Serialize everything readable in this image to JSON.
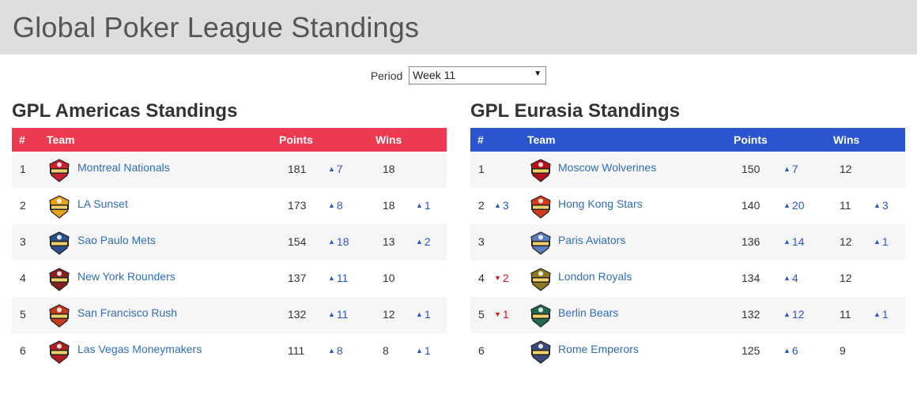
{
  "header": {
    "title": "Global Poker League Standings"
  },
  "period": {
    "label": "Period",
    "selected": "Week 11"
  },
  "columns": {
    "rank": "#",
    "team": "Team",
    "points": "Points",
    "wins": "Wins"
  },
  "colors": {
    "americas_header": "#ee3a50",
    "eurasia_header": "#2b55cf",
    "link": "#2f6db5",
    "up": "#2b55cf",
    "down": "#d9141e"
  },
  "americas": {
    "title": "GPL Americas Standings",
    "rows": [
      {
        "rank": "1",
        "rank_change": "",
        "team": "Montreal Nationals",
        "logo": "montreal-nationals-logo",
        "points": "181",
        "points_change": "7",
        "wins": "18",
        "wins_change": ""
      },
      {
        "rank": "2",
        "rank_change": "",
        "team": "LA Sunset",
        "logo": "la-sunset-logo",
        "points": "173",
        "points_change": "8",
        "wins": "18",
        "wins_change": "1"
      },
      {
        "rank": "3",
        "rank_change": "",
        "team": "Sao Paulo Mets",
        "logo": "sao-paulo-mets-logo",
        "points": "154",
        "points_change": "18",
        "wins": "13",
        "wins_change": "2"
      },
      {
        "rank": "4",
        "rank_change": "",
        "team": "New York Rounders",
        "logo": "new-york-rounders-logo",
        "points": "137",
        "points_change": "11",
        "wins": "10",
        "wins_change": ""
      },
      {
        "rank": "5",
        "rank_change": "",
        "team": "San Francisco Rush",
        "logo": "san-francisco-rush-logo",
        "points": "132",
        "points_change": "11",
        "wins": "12",
        "wins_change": "1"
      },
      {
        "rank": "6",
        "rank_change": "",
        "team": "Las Vegas Moneymakers",
        "logo": "las-vegas-moneymakers-logo",
        "points": "111",
        "points_change": "8",
        "wins": "8",
        "wins_change": "1"
      }
    ]
  },
  "eurasia": {
    "title": "GPL Eurasia Standings",
    "rows": [
      {
        "rank": "1",
        "rank_change": "",
        "team": "Moscow Wolverines",
        "logo": "moscow-wolverines-logo",
        "points": "150",
        "points_change": "7",
        "wins": "12",
        "wins_change": ""
      },
      {
        "rank": "2",
        "rank_change": "3",
        "rank_dir": "up",
        "team": "Hong Kong Stars",
        "logo": "hong-kong-stars-logo",
        "points": "140",
        "points_change": "20",
        "wins": "11",
        "wins_change": "3"
      },
      {
        "rank": "3",
        "rank_change": "",
        "team": "Paris Aviators",
        "logo": "paris-aviators-logo",
        "points": "136",
        "points_change": "14",
        "wins": "12",
        "wins_change": "1"
      },
      {
        "rank": "4",
        "rank_change": "2",
        "rank_dir": "down",
        "team": "London Royals",
        "logo": "london-royals-logo",
        "points": "134",
        "points_change": "4",
        "wins": "12",
        "wins_change": ""
      },
      {
        "rank": "5",
        "rank_change": "1",
        "rank_dir": "down",
        "team": "Berlin Bears",
        "logo": "berlin-bears-logo",
        "points": "132",
        "points_change": "12",
        "wins": "11",
        "wins_change": "1"
      },
      {
        "rank": "6",
        "rank_change": "",
        "team": "Rome Emperors",
        "logo": "rome-emperors-logo",
        "points": "125",
        "points_change": "6",
        "wins": "9",
        "wins_change": ""
      }
    ]
  }
}
